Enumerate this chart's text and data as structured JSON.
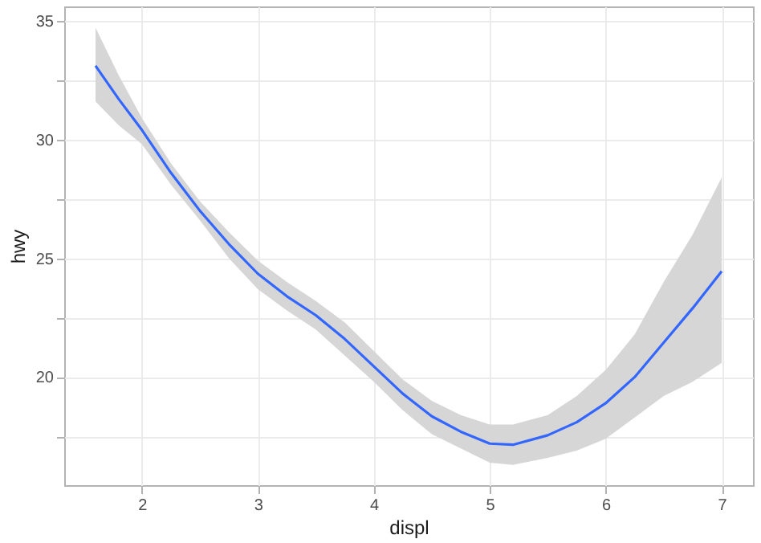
{
  "chart_data": {
    "type": "line",
    "xlabel": "displ",
    "ylabel": "hwy",
    "x": [
      1.6,
      1.8,
      2,
      2.25,
      2.5,
      2.75,
      3,
      3.25,
      3.5,
      3.75,
      4,
      4.25,
      4.5,
      4.75,
      5,
      5.2,
      5.5,
      5.75,
      6,
      6.25,
      6.5,
      6.75,
      7
    ],
    "series": [
      {
        "color": "#3366ff",
        "values": [
          33.1,
          31.7,
          30.4,
          28.6,
          27.0,
          25.6,
          24.35,
          23.4,
          22.6,
          21.6,
          20.45,
          19.3,
          18.35,
          17.7,
          17.2,
          17.15,
          17.55,
          18.1,
          18.9,
          20.0,
          21.45,
          22.9,
          24.45
        ],
        "lower": [
          31.6,
          30.6,
          29.8,
          28.1,
          26.6,
          25.0,
          23.7,
          22.8,
          22.0,
          20.9,
          19.8,
          18.6,
          17.6,
          17.0,
          16.4,
          16.3,
          16.6,
          16.9,
          17.4,
          18.3,
          19.2,
          19.8,
          20.6
        ],
        "upper": [
          34.7,
          32.7,
          30.9,
          29.0,
          27.4,
          26.1,
          24.9,
          24.0,
          23.2,
          22.3,
          21.1,
          19.9,
          19.0,
          18.4,
          18.0,
          18.0,
          18.4,
          19.2,
          20.3,
          21.8,
          24.0,
          26.0,
          28.4
        ]
      }
    ],
    "xlim": [
      1.33,
      7.27
    ],
    "xticks": [
      2,
      3,
      4,
      5,
      6,
      7
    ],
    "ylim": [
      15.45,
      35.6
    ],
    "yticks": [
      {
        "value": 17.5,
        "label": null
      },
      20,
      {
        "value": 22.5,
        "label": null
      },
      25,
      {
        "value": 27.5,
        "label": null
      },
      30,
      {
        "value": 32.5,
        "label": null
      },
      35
    ],
    "grid": true
  }
}
